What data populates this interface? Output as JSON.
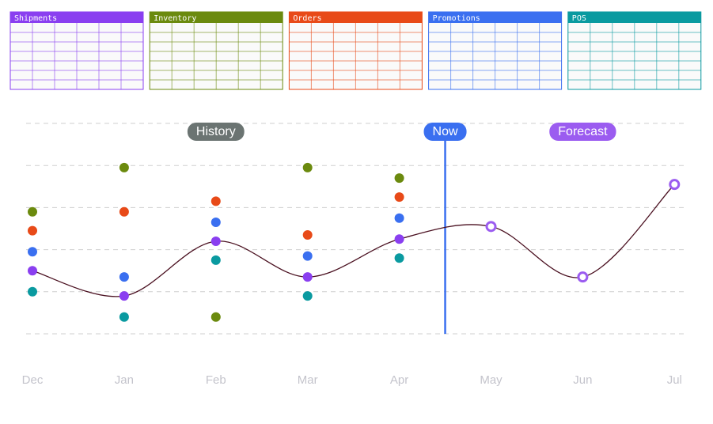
{
  "tables": [
    {
      "title": "Shipments",
      "color": "#8a3ff0"
    },
    {
      "title": "Inventory",
      "color": "#6b8a0e"
    },
    {
      "title": "Orders",
      "color": "#e84a18"
    },
    {
      "title": "Promotions",
      "color": "#3a6ff0"
    },
    {
      "title": "POS",
      "color": "#0a9aa0"
    }
  ],
  "chart_data": {
    "type": "line",
    "categories": [
      "Dec",
      "Jan",
      "Feb",
      "Mar",
      "Apr",
      "May",
      "Jun",
      "Jul"
    ],
    "ylim": [
      0,
      5
    ],
    "yticks": [
      0,
      1,
      2,
      3,
      4,
      5
    ],
    "grid": true,
    "series": [
      {
        "name": "Shipments",
        "color": "#8a3ff0",
        "values": [
          1.5,
          0.9,
          2.2,
          1.35,
          2.25,
          null,
          null,
          null
        ]
      },
      {
        "name": "Inventory",
        "color": "#6b8a0e",
        "values": [
          2.9,
          3.95,
          0.4,
          3.95,
          3.7,
          null,
          null,
          null
        ]
      },
      {
        "name": "Orders",
        "color": "#e84a18",
        "values": [
          2.45,
          2.9,
          3.15,
          2.35,
          3.25,
          null,
          null,
          null
        ]
      },
      {
        "name": "Promotions",
        "color": "#3a6ff0",
        "values": [
          1.95,
          1.35,
          2.65,
          1.85,
          2.75,
          null,
          null,
          null
        ]
      },
      {
        "name": "POS",
        "color": "#0a9aa0",
        "values": [
          1.0,
          0.4,
          1.75,
          0.9,
          1.8,
          null,
          null,
          null
        ]
      },
      {
        "name": "Forecast",
        "color": "#9b5cf0",
        "values": [
          null,
          null,
          null,
          null,
          null,
          2.55,
          1.35,
          3.55
        ]
      }
    ],
    "curve_color": "#4a1020",
    "annotations": [
      {
        "label": "History",
        "x": 2,
        "color": "#6b7472"
      },
      {
        "label": "Now",
        "x": 4.5,
        "color": "#3a6ff0"
      }
    ]
  }
}
